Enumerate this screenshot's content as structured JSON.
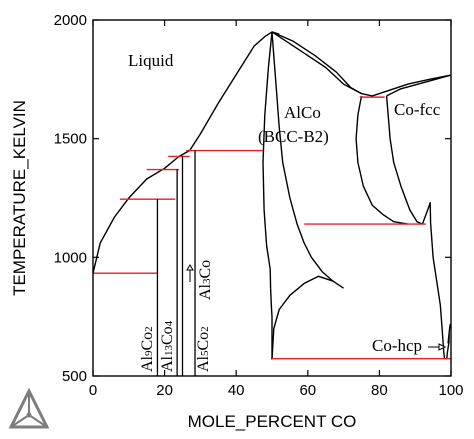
{
  "chart_data": {
    "type": "line",
    "title": "",
    "xlabel": "MOLE_PERCENT CO",
    "ylabel": "TEMPERATURE_KELVIN",
    "xlim": [
      0,
      100
    ],
    "ylim": [
      500,
      2000
    ],
    "x_ticks": [
      0,
      20,
      40,
      60,
      80,
      100
    ],
    "y_ticks": [
      500,
      1000,
      1500,
      2000
    ],
    "grid": false,
    "colors": {
      "boundary": "#000000",
      "invariant": "#e8202a"
    },
    "phase_labels": {
      "liquid": "Liquid",
      "alco_line1": "AlCo",
      "alco_line2": "(BCC-B2)",
      "cofcc": "Co-fcc",
      "cohcp": "Co-hcp",
      "al9co2": {
        "base1": "Al",
        "sub1": "9",
        "base2": "Co",
        "sub2": "2"
      },
      "al13co4": {
        "base1": "Al",
        "sub1": "13",
        "base2": "Co",
        "sub2": "4"
      },
      "al5co2": {
        "base1": "Al",
        "sub1": "5",
        "base2": "Co",
        "sub2": "2"
      },
      "al3co": {
        "base1": "Al",
        "sub1": "3",
        "base2": "Co",
        "sub2": ""
      }
    },
    "boundaries": [
      {
        "name": "liquidus-al-side",
        "points": [
          [
            0,
            933
          ],
          [
            2,
            1060
          ],
          [
            6,
            1170
          ],
          [
            10,
            1250
          ],
          [
            15,
            1330
          ],
          [
            20,
            1375
          ],
          [
            24,
            1425
          ],
          [
            27,
            1450
          ],
          [
            30,
            1520
          ],
          [
            35,
            1650
          ],
          [
            40,
            1770
          ],
          [
            45,
            1890
          ],
          [
            48,
            1930
          ],
          [
            50,
            1950
          ],
          [
            52,
            1940
          ]
        ]
      },
      {
        "name": "liquidus-co-side",
        "points": [
          [
            50,
            1950
          ],
          [
            55,
            1900
          ],
          [
            60,
            1850
          ],
          [
            65,
            1800
          ],
          [
            70,
            1730
          ],
          [
            75,
            1690
          ],
          [
            78,
            1680
          ],
          [
            82,
            1700
          ],
          [
            88,
            1730
          ],
          [
            94,
            1750
          ],
          [
            100,
            1768
          ]
        ]
      },
      {
        "name": "solidus-upper-right",
        "points": [
          [
            50,
            1950
          ],
          [
            56,
            1910
          ],
          [
            62,
            1850
          ],
          [
            68,
            1780
          ],
          [
            72,
            1715
          ],
          [
            75,
            1690
          ]
        ]
      },
      {
        "name": "fcc-upper-boundary",
        "points": [
          [
            82,
            1680
          ],
          [
            86,
            1710
          ],
          [
            92,
            1735
          ],
          [
            100,
            1768
          ]
        ]
      },
      {
        "name": "b2-left-boundary",
        "points": [
          [
            50,
            1950
          ],
          [
            49,
            1800
          ],
          [
            48,
            1600
          ],
          [
            47.5,
            1400
          ],
          [
            47.8,
            1200
          ],
          [
            48.5,
            1050
          ],
          [
            49.5,
            950
          ],
          [
            49.6,
            870
          ]
        ]
      },
      {
        "name": "b2-right-upper",
        "points": [
          [
            50,
            1950
          ],
          [
            51,
            1750
          ],
          [
            52,
            1550
          ],
          [
            53,
            1400
          ],
          [
            55,
            1250
          ],
          [
            57,
            1140
          ],
          [
            59,
            1060
          ],
          [
            61,
            1000
          ],
          [
            64,
            940
          ],
          [
            67,
            900
          ],
          [
            70,
            870
          ]
        ]
      },
      {
        "name": "b2-left-lower",
        "points": [
          [
            49.6,
            870
          ],
          [
            49.8,
            800
          ],
          [
            50,
            750
          ],
          [
            50,
            700
          ],
          [
            50,
            570
          ]
        ]
      },
      {
        "name": "b2-right-lower",
        "points": [
          [
            50,
            570
          ],
          [
            50.5,
            700
          ],
          [
            52,
            780
          ],
          [
            55,
            840
          ],
          [
            59,
            890
          ],
          [
            63,
            920
          ],
          [
            67,
            900
          ]
        ]
      },
      {
        "name": "b2-right-solvus",
        "points": [
          [
            75,
            1680
          ],
          [
            74,
            1600
          ],
          [
            73.5,
            1500
          ],
          [
            74,
            1400
          ],
          [
            75.5,
            1300
          ],
          [
            78,
            1220
          ],
          [
            81,
            1180
          ],
          [
            84,
            1150
          ],
          [
            88,
            1140
          ]
        ]
      },
      {
        "name": "fcc-left-boundary",
        "points": [
          [
            82,
            1680
          ],
          [
            83,
            1500
          ],
          [
            84,
            1400
          ],
          [
            86,
            1300
          ],
          [
            88.5,
            1200
          ],
          [
            90.5,
            1150
          ],
          [
            92,
            1140
          ]
        ]
      },
      {
        "name": "fcc-spike",
        "points": [
          [
            92,
            1140
          ],
          [
            93.5,
            1200
          ],
          [
            94.2,
            1230
          ],
          [
            94.3,
            1145
          ],
          [
            95,
            1000
          ],
          [
            96,
            900
          ],
          [
            97,
            800
          ],
          [
            97.5,
            700
          ],
          [
            98,
            600
          ],
          [
            98.2,
            570
          ]
        ]
      },
      {
        "name": "fcc-hcp-right",
        "points": [
          [
            98.8,
            570
          ],
          [
            99,
            600
          ],
          [
            99.4,
            640
          ],
          [
            99.5,
            680
          ],
          [
            99.2,
            640
          ],
          [
            99.6,
            700
          ],
          [
            99.8,
            720
          ]
        ]
      }
    ],
    "invariants": [
      {
        "name": "eutectic-al",
        "x": [
          0,
          18
        ],
        "temperature": 933
      },
      {
        "name": "peritectic-al9co2",
        "x": [
          7.5,
          23
        ],
        "temperature": 1245
      },
      {
        "name": "peritectic-al13co4",
        "x": [
          15,
          24
        ],
        "temperature": 1370
      },
      {
        "name": "peritectic-al3co",
        "x": [
          21,
          27
        ],
        "temperature": 1425
      },
      {
        "name": "peritectic-al5co2",
        "x": [
          26,
          47.5
        ],
        "temperature": 1450
      },
      {
        "name": "b2-fcc-eutectoid",
        "x": [
          59,
          93
        ],
        "temperature": 1140
      },
      {
        "name": "b2-fcc-peritectic",
        "x": [
          74.5,
          81.5
        ],
        "temperature": 1675
      },
      {
        "name": "hcp-eutectoid",
        "x": [
          50,
          100
        ],
        "temperature": 573
      }
    ],
    "compounds": [
      {
        "name": "Al9Co2",
        "x": 18,
        "t_top": 1245
      },
      {
        "name": "Al13Co4",
        "x": 23.5,
        "t_top": 1370
      },
      {
        "name": "Al3Co",
        "x": 25,
        "t_top": 1425
      },
      {
        "name": "Al5Co2",
        "x": 28.5,
        "t_top": 1450
      }
    ]
  }
}
